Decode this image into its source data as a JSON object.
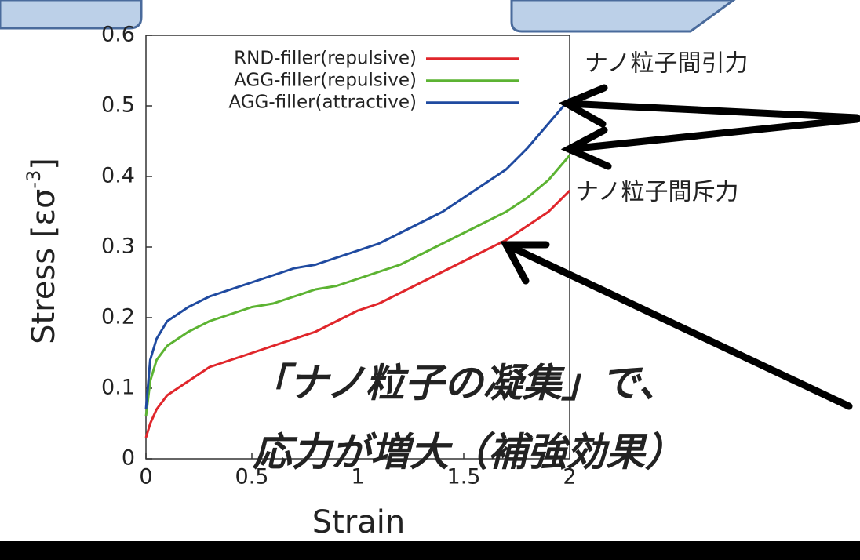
{
  "chart_data": {
    "type": "line",
    "xlabel": "Strain",
    "ylabel": [
      "Stress [εσ",
      "-3",
      "]"
    ],
    "x": [
      0,
      0.02,
      0.05,
      0.1,
      0.2,
      0.3,
      0.4,
      0.5,
      0.6,
      0.7,
      0.8,
      0.9,
      1.0,
      1.1,
      1.2,
      1.3,
      1.4,
      1.5,
      1.6,
      1.7,
      1.8,
      1.9,
      2.0
    ],
    "series": [
      {
        "name": "RND-filler(repulsive)",
        "color": "#e0262b",
        "values": [
          0.03,
          0.05,
          0.07,
          0.09,
          0.11,
          0.13,
          0.14,
          0.15,
          0.16,
          0.17,
          0.18,
          0.195,
          0.21,
          0.22,
          0.235,
          0.25,
          0.265,
          0.28,
          0.295,
          0.31,
          0.33,
          0.35,
          0.38
        ]
      },
      {
        "name": "AGG-filler(repulsive)",
        "color": "#5cb332",
        "values": [
          0.06,
          0.11,
          0.14,
          0.16,
          0.18,
          0.195,
          0.205,
          0.215,
          0.22,
          0.23,
          0.24,
          0.245,
          0.255,
          0.265,
          0.275,
          0.29,
          0.305,
          0.32,
          0.335,
          0.35,
          0.37,
          0.395,
          0.43
        ]
      },
      {
        "name": "AGG-filler(attractive)",
        "color": "#1f4aa0",
        "values": [
          0.07,
          0.14,
          0.17,
          0.195,
          0.215,
          0.23,
          0.24,
          0.25,
          0.26,
          0.27,
          0.275,
          0.285,
          0.295,
          0.305,
          0.32,
          0.335,
          0.35,
          0.37,
          0.39,
          0.41,
          0.44,
          0.475,
          0.51
        ]
      }
    ],
    "xlim": [
      0,
      2
    ],
    "xticks": [
      0,
      0.5,
      1,
      1.5,
      2
    ],
    "ylim": [
      0,
      0.6
    ],
    "yticks": [
      0,
      0.1,
      0.2,
      0.3,
      0.4,
      0.5,
      0.6
    ],
    "legend": "top-left",
    "annotations": [
      "ナノ粒子間引力",
      "ナノ粒子間斥力",
      "「ナノ粒子の凝集」で、",
      "応力が増大（補強効果）"
    ]
  }
}
